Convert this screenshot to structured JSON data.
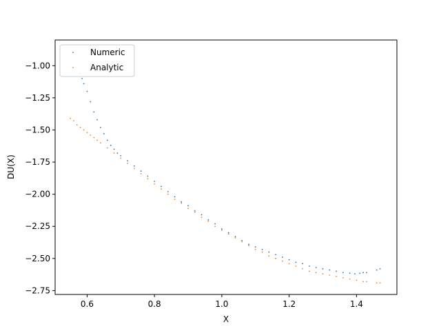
{
  "chart_data": {
    "type": "scatter",
    "xlabel": "X",
    "ylabel": "DU(X)",
    "xlim": [
      0.505,
      1.52
    ],
    "ylim": [
      -2.78,
      -0.8
    ],
    "x_ticks": [
      0.6,
      0.8,
      1.0,
      1.2,
      1.4
    ],
    "x_tick_labels": [
      "0.6",
      "0.8",
      "1.0",
      "1.2",
      "1.4"
    ],
    "y_ticks": [
      -1.0,
      -1.25,
      -1.5,
      -1.75,
      -2.0,
      -2.25,
      -2.5,
      -2.75
    ],
    "y_tick_labels": [
      "−1.00",
      "−1.25",
      "−1.50",
      "−1.75",
      "−2.00",
      "−2.25",
      "−2.50",
      "−2.75"
    ],
    "grid": false,
    "legend_position": "top-left",
    "series": [
      {
        "name": "Numeric",
        "color": "#1f77b4",
        "x": [
          0.578,
          0.585,
          0.59,
          0.6,
          0.61,
          0.62,
          0.63,
          0.64,
          0.65,
          0.66,
          0.67,
          0.68,
          0.69,
          0.7,
          0.72,
          0.74,
          0.76,
          0.78,
          0.8,
          0.82,
          0.84,
          0.86,
          0.88,
          0.9,
          0.92,
          0.94,
          0.96,
          0.98,
          1.0,
          1.02,
          1.04,
          1.06,
          1.08,
          1.1,
          1.12,
          1.14,
          1.16,
          1.18,
          1.2,
          1.22,
          1.24,
          1.26,
          1.28,
          1.3,
          1.32,
          1.34,
          1.36,
          1.38,
          1.395,
          1.41,
          1.42,
          1.43,
          1.46,
          1.47
        ],
        "y": [
          -1.06,
          -1.1,
          -1.14,
          -1.2,
          -1.28,
          -1.36,
          -1.42,
          -1.48,
          -1.53,
          -1.58,
          -1.62,
          -1.65,
          -1.68,
          -1.7,
          -1.74,
          -1.78,
          -1.82,
          -1.86,
          -1.9,
          -1.94,
          -1.98,
          -2.02,
          -2.06,
          -2.09,
          -2.13,
          -2.16,
          -2.2,
          -2.23,
          -2.27,
          -2.3,
          -2.33,
          -2.36,
          -2.39,
          -2.41,
          -2.43,
          -2.45,
          -2.47,
          -2.49,
          -2.51,
          -2.53,
          -2.54,
          -2.56,
          -2.57,
          -2.58,
          -2.59,
          -2.6,
          -2.61,
          -2.615,
          -2.62,
          -2.615,
          -2.61,
          -2.61,
          -2.59,
          -2.58
        ]
      },
      {
        "name": "Analytic",
        "color": "#ff7f0e",
        "x": [
          0.55,
          0.56,
          0.57,
          0.58,
          0.59,
          0.6,
          0.61,
          0.62,
          0.63,
          0.64,
          0.66,
          0.68,
          0.7,
          0.72,
          0.74,
          0.76,
          0.78,
          0.8,
          0.82,
          0.84,
          0.86,
          0.88,
          0.9,
          0.92,
          0.94,
          0.96,
          0.98,
          1.0,
          1.02,
          1.04,
          1.06,
          1.08,
          1.1,
          1.12,
          1.14,
          1.16,
          1.18,
          1.2,
          1.22,
          1.24,
          1.26,
          1.28,
          1.3,
          1.32,
          1.34,
          1.36,
          1.38,
          1.4,
          1.42,
          1.43,
          1.46,
          1.47
        ],
        "y": [
          -1.41,
          -1.43,
          -1.46,
          -1.48,
          -1.5,
          -1.52,
          -1.54,
          -1.56,
          -1.58,
          -1.6,
          -1.64,
          -1.68,
          -1.72,
          -1.76,
          -1.8,
          -1.84,
          -1.88,
          -1.92,
          -1.96,
          -2.0,
          -2.04,
          -2.07,
          -2.11,
          -2.14,
          -2.18,
          -2.21,
          -2.25,
          -2.28,
          -2.31,
          -2.34,
          -2.37,
          -2.4,
          -2.43,
          -2.45,
          -2.48,
          -2.5,
          -2.52,
          -2.54,
          -2.56,
          -2.58,
          -2.6,
          -2.61,
          -2.62,
          -2.63,
          -2.64,
          -2.65,
          -2.66,
          -2.67,
          -2.68,
          -2.68,
          -2.69,
          -2.69
        ]
      }
    ]
  }
}
